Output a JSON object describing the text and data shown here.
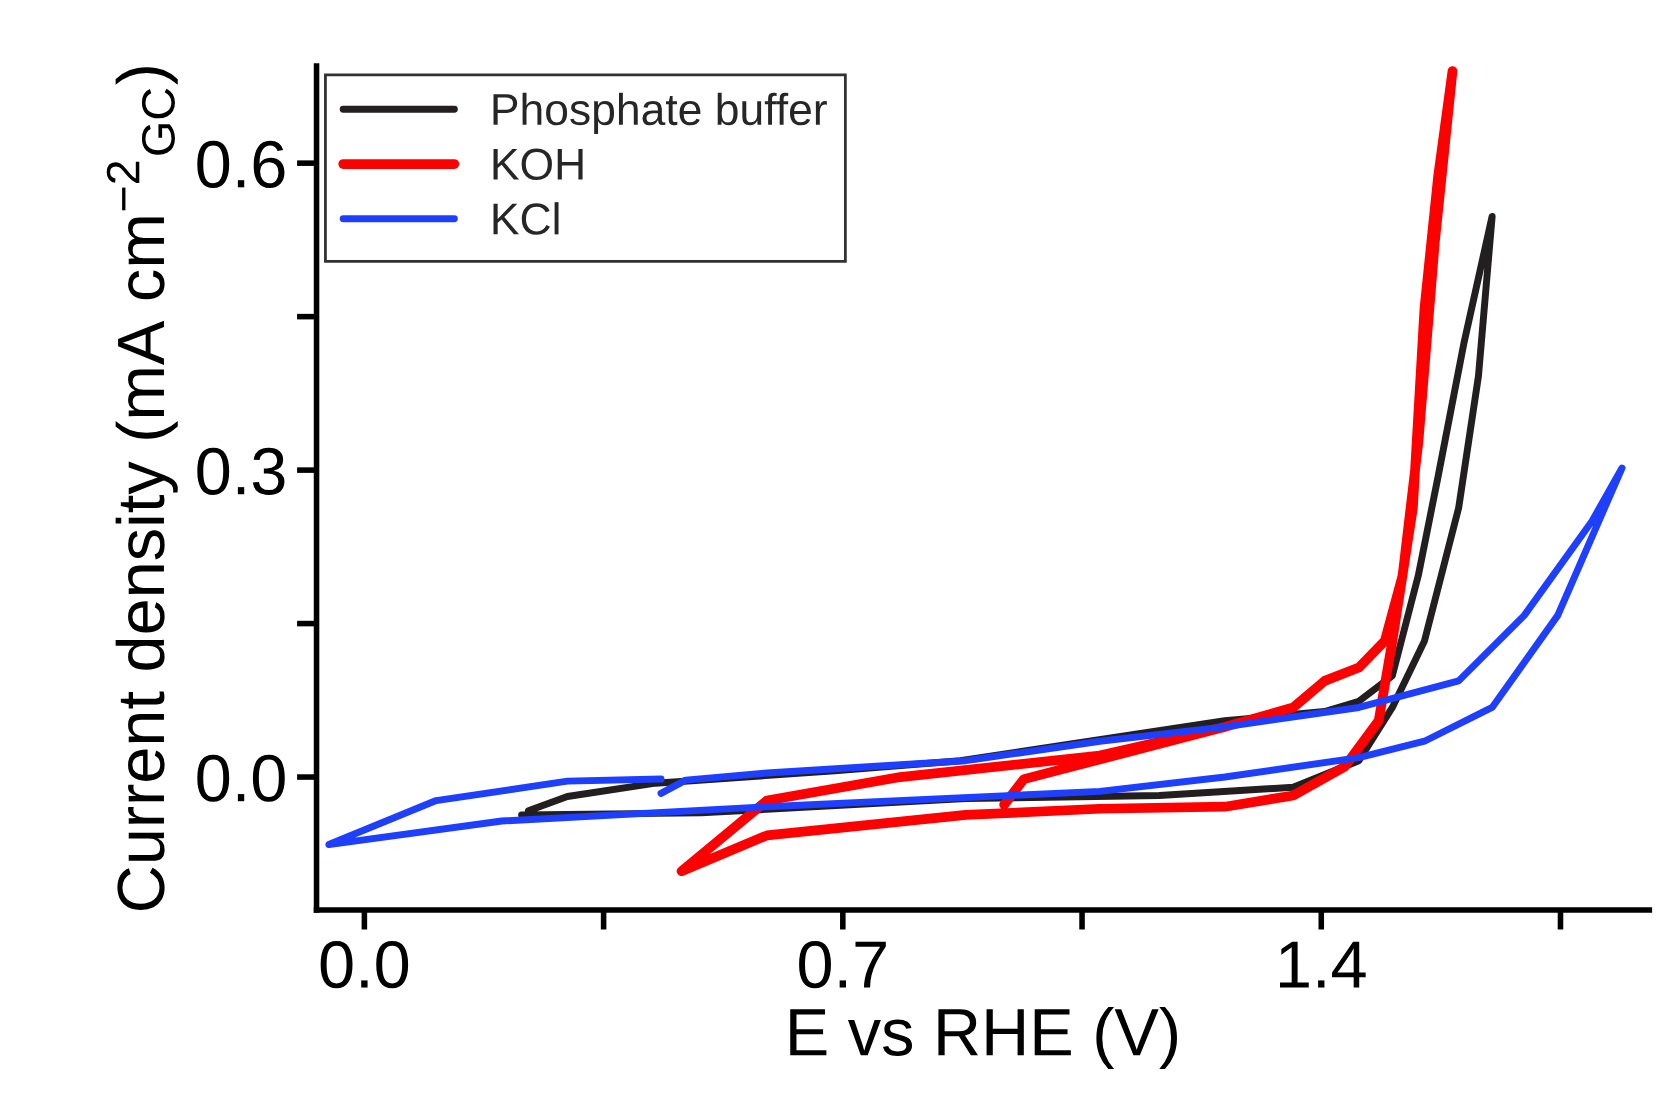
{
  "chart_data": {
    "type": "line",
    "xlabel": "E vs RHE (V)",
    "ylabel": "Current density (mA cm$^{−2}$$_{GC}$)",
    "xlim": [
      -0.07,
      1.88
    ],
    "ylim": [
      -0.13,
      0.695
    ],
    "xticks": [
      {
        "value": 0.0,
        "label": "0.0"
      },
      {
        "value": 0.35,
        "label": null
      },
      {
        "value": 0.7,
        "label": "0.7"
      },
      {
        "value": 1.05,
        "label": null
      },
      {
        "value": 1.4,
        "label": "1.4"
      },
      {
        "value": 1.75,
        "label": null
      }
    ],
    "yticks": [
      {
        "value": 0.0,
        "label": "0.0"
      },
      {
        "value": 0.15,
        "label": null
      },
      {
        "value": 0.3,
        "label": "0.3"
      },
      {
        "value": 0.45,
        "label": null
      },
      {
        "value": 0.6,
        "label": "0.6"
      }
    ],
    "grid": false,
    "legend": "top left",
    "marker": "none",
    "line_style": "solid",
    "series": [
      {
        "name": "Phosphate buffer",
        "color": "#231f20",
        "x": [
          0.23,
          0.493,
          0.88,
          1.163,
          1.359,
          1.455,
          1.504,
          1.551,
          1.601,
          1.63,
          1.65,
          1.609,
          1.571,
          1.542,
          1.504,
          1.455,
          1.405,
          1.259,
          0.872,
          0.688,
          0.426,
          0.297,
          0.24
        ],
        "values": [
          -0.037,
          -0.035,
          -0.021,
          -0.018,
          -0.01,
          0.016,
          0.068,
          0.133,
          0.263,
          0.392,
          0.548,
          0.425,
          0.294,
          0.197,
          0.099,
          0.074,
          0.064,
          0.055,
          0.016,
          0.006,
          -0.006,
          -0.019,
          -0.033
        ]
      },
      {
        "name": "KOH",
        "color": "#ff0000",
        "x": [
          0.936,
          0.965,
          1.259,
          1.359,
          1.405,
          1.455,
          1.493,
          1.519,
          1.542,
          1.566,
          1.592,
          1.571,
          1.551,
          1.534,
          1.504,
          1.484,
          1.434,
          1.359,
          1.259,
          1.076,
          0.88,
          0.589,
          0.464,
          0.589,
          0.784,
          1.076,
          1.259,
          1.359,
          1.405,
          1.455,
          1.493,
          1.519,
          1.542,
          1.566,
          1.592
        ],
        "values": [
          -0.027,
          -0.002,
          0.049,
          0.068,
          0.094,
          0.107,
          0.133,
          0.197,
          0.327,
          0.522,
          0.69,
          0.587,
          0.458,
          0.263,
          0.133,
          0.055,
          0.01,
          -0.018,
          -0.029,
          -0.031,
          -0.037,
          -0.057,
          -0.092,
          -0.023,
          0.0,
          0.021,
          0.049,
          0.068,
          0.094,
          0.107,
          0.133,
          0.197,
          0.327,
          0.522,
          0.69
        ]
      },
      {
        "name": "KCl",
        "color": "#1f3fff",
        "x": [
          0.434,
          0.47,
          0.589,
          0.88,
          1.076,
          1.259,
          1.455,
          1.601,
          1.697,
          1.796,
          1.84,
          1.746,
          1.65,
          1.551,
          1.455,
          1.259,
          1.076,
          0.589,
          0.201,
          -0.052,
          0.105,
          0.297,
          0.434
        ],
        "values": [
          -0.016,
          -0.003,
          0.004,
          0.016,
          0.035,
          0.049,
          0.068,
          0.094,
          0.158,
          0.25,
          0.302,
          0.158,
          0.068,
          0.035,
          0.019,
          0.0,
          -0.014,
          -0.029,
          -0.043,
          -0.066,
          -0.023,
          -0.004,
          -0.002
        ]
      }
    ]
  }
}
